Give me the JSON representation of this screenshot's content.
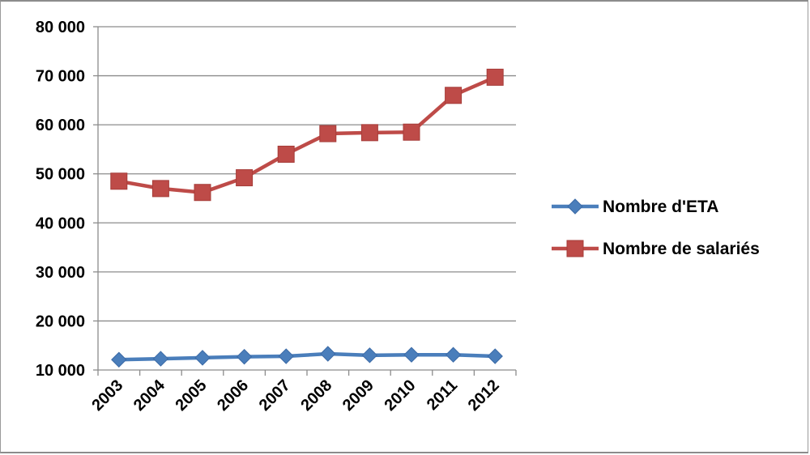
{
  "chart_data": {
    "type": "line",
    "x": [
      "2003",
      "2004",
      "2005",
      "2006",
      "2007",
      "2008",
      "2009",
      "2010",
      "2011",
      "2012"
    ],
    "y_ticks": [
      "10 000",
      "20 000",
      "30 000",
      "40 000",
      "50 000",
      "60 000",
      "70 000",
      "80 000"
    ],
    "ylim": [
      10000,
      80000
    ],
    "grid": "horizontal",
    "legend_position": "right",
    "series": [
      {
        "name": "Nombre d'ETA",
        "color": "#4a7ebb",
        "marker": "diamond",
        "values": [
          12100,
          12300,
          12500,
          12700,
          12800,
          13300,
          13000,
          13100,
          13100,
          12800
        ]
      },
      {
        "name": "Nombre de salariés",
        "color": "#be4b48",
        "marker": "square",
        "values": [
          48500,
          47000,
          46200,
          49200,
          54000,
          58200,
          58400,
          58500,
          66000,
          69700
        ]
      }
    ]
  }
}
